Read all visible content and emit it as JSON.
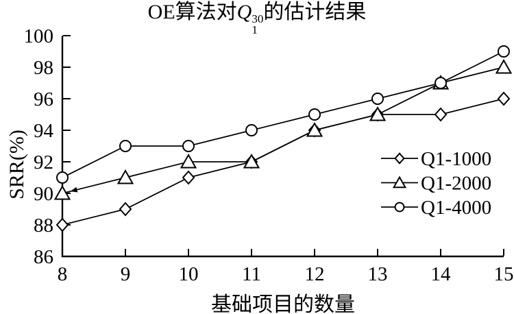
{
  "figure": {
    "background": "#ffffff",
    "ink": "#000000",
    "title": {
      "prefix": "OE算法对",
      "var": "Q",
      "sup": "30",
      "sub": "1",
      "suffix": "的估计结果"
    }
  },
  "chart_data": {
    "type": "line",
    "title": "OE算法对Q1^30的估计结果",
    "xlabel": "基础项目的数量",
    "ylabel": "SRR(%)",
    "x": [
      8,
      9,
      10,
      11,
      12,
      13,
      14,
      15
    ],
    "xticks": [
      8,
      9,
      10,
      11,
      12,
      13,
      14,
      15
    ],
    "yticks": [
      86,
      88,
      90,
      92,
      94,
      96,
      98,
      100
    ],
    "xlim": [
      8,
      15
    ],
    "ylim": [
      86,
      100
    ],
    "grid": false,
    "legend_position": "right-middle",
    "series": [
      {
        "name": "Q1-1000",
        "marker": "diamond",
        "color": "#000000",
        "values": [
          88,
          89,
          91,
          92,
          94,
          95,
          95,
          96
        ]
      },
      {
        "name": "Q1-2000",
        "marker": "triangle",
        "color": "#000000",
        "values": [
          90,
          91,
          92,
          92,
          94,
          95,
          97,
          98
        ]
      },
      {
        "name": "Q1-4000",
        "marker": "circle",
        "color": "#000000",
        "values": [
          91,
          93,
          93,
          94,
          95,
          96,
          97,
          99
        ]
      }
    ],
    "annotation_arrow": {
      "series": "Q1-2000",
      "from_x": 9,
      "from_y": 91,
      "to_x": 8,
      "to_y": 90
    }
  }
}
